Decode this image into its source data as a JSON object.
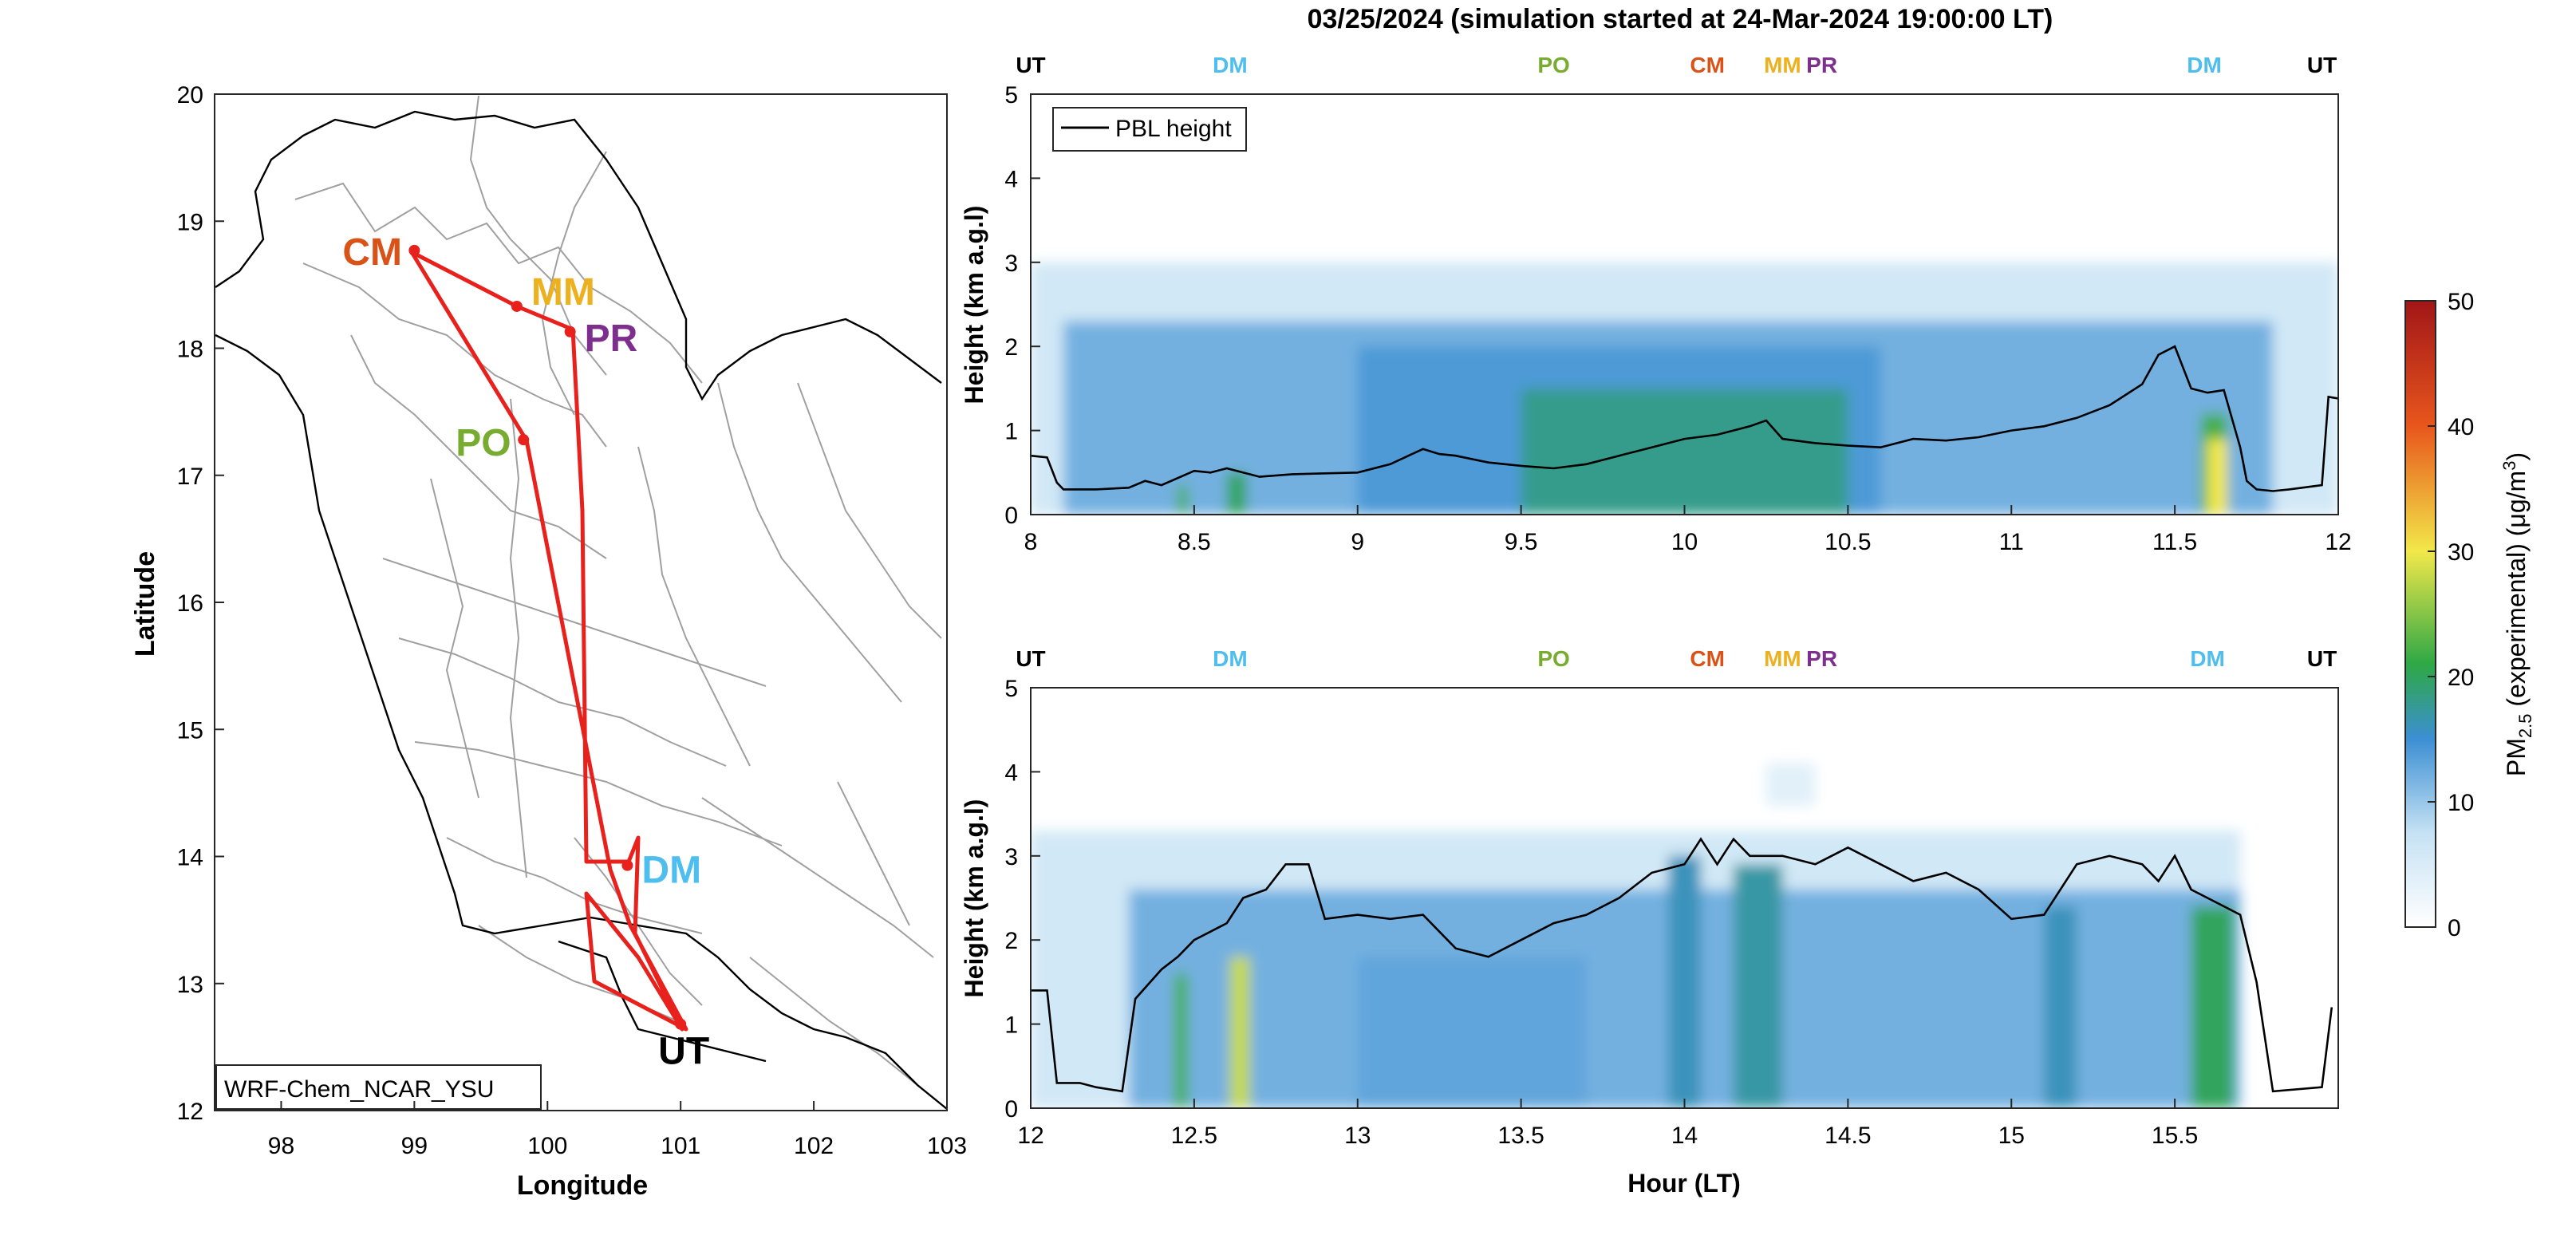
{
  "figure_title": "03/25/2024 (simulation started at 24-Mar-2024 19:00:00 LT)",
  "map": {
    "xlabel": "Longitude",
    "ylabel": "Latitude",
    "xticks": [
      "98",
      "99",
      "100",
      "101",
      "102",
      "103"
    ],
    "yticks": [
      "12",
      "13",
      "14",
      "15",
      "16",
      "17",
      "18",
      "19",
      "20"
    ],
    "model_label": "WRF-Chem_NCAR_YSU",
    "route_color": "#e8211c",
    "stations": [
      {
        "code": "CM",
        "lon": 99.0,
        "lat": 18.77,
        "color": "#d95319"
      },
      {
        "code": "MM",
        "lon": 99.77,
        "lat": 18.33,
        "color": "#edb120"
      },
      {
        "code": "PR",
        "lon": 100.17,
        "lat": 18.13,
        "color": "#7e2f8e"
      },
      {
        "code": "PO",
        "lon": 99.82,
        "lat": 17.28,
        "color": "#77ac30"
      },
      {
        "code": "DM",
        "lon": 100.6,
        "lat": 13.93,
        "color": "#4dbeee"
      },
      {
        "code": "UT",
        "lon": 101.0,
        "lat": 12.68,
        "color": "#000000"
      }
    ]
  },
  "chart_data": [
    {
      "type": "heatmap",
      "title": "",
      "xlabel": "",
      "ylabel": "Height (km a.g.l)",
      "xlim": [
        8,
        12
      ],
      "ylim": [
        0,
        5
      ],
      "xticks": [
        "8",
        "8.5",
        "9",
        "9.5",
        "10",
        "10.5",
        "11",
        "11.5",
        "12"
      ],
      "yticks": [
        "0",
        "1",
        "2",
        "3",
        "4",
        "5"
      ],
      "legend": {
        "position": "top-left",
        "entries": [
          "PBL height"
        ]
      },
      "station_markers": [
        {
          "code": "UT",
          "hour": 8.0,
          "color": "#000000"
        },
        {
          "code": "DM",
          "hour": 8.61,
          "color": "#4dbeee"
        },
        {
          "code": "PO",
          "hour": 9.6,
          "color": "#77ac30"
        },
        {
          "code": "CM",
          "hour": 10.07,
          "color": "#d95319"
        },
        {
          "code": "MM",
          "hour": 10.3,
          "color": "#edb120"
        },
        {
          "code": "PR",
          "hour": 10.42,
          "color": "#7e2f8e"
        },
        {
          "code": "DM",
          "hour": 11.59,
          "color": "#4dbeee"
        },
        {
          "code": "UT",
          "hour": 11.95,
          "color": "#000000"
        }
      ],
      "series": [
        {
          "name": "PBL height",
          "x": [
            8.0,
            8.05,
            8.08,
            8.1,
            8.2,
            8.3,
            8.35,
            8.4,
            8.5,
            8.55,
            8.6,
            8.7,
            8.8,
            9.0,
            9.1,
            9.2,
            9.25,
            9.3,
            9.4,
            9.5,
            9.6,
            9.7,
            9.8,
            9.9,
            10.0,
            10.1,
            10.2,
            10.25,
            10.3,
            10.4,
            10.5,
            10.6,
            10.7,
            10.8,
            10.9,
            11.0,
            11.1,
            11.2,
            11.3,
            11.4,
            11.45,
            11.5,
            11.55,
            11.6,
            11.65,
            11.7,
            11.72,
            11.75,
            11.8,
            11.85,
            11.95,
            11.97,
            12.0
          ],
          "y": [
            0.7,
            0.68,
            0.38,
            0.3,
            0.3,
            0.32,
            0.4,
            0.35,
            0.52,
            0.5,
            0.55,
            0.45,
            0.48,
            0.5,
            0.6,
            0.78,
            0.72,
            0.7,
            0.62,
            0.58,
            0.55,
            0.6,
            0.7,
            0.8,
            0.9,
            0.95,
            1.05,
            1.12,
            0.9,
            0.85,
            0.82,
            0.8,
            0.9,
            0.88,
            0.92,
            1.0,
            1.05,
            1.15,
            1.3,
            1.55,
            1.9,
            2.0,
            1.5,
            1.45,
            1.48,
            0.8,
            0.4,
            0.3,
            0.28,
            0.3,
            0.35,
            1.4,
            1.38
          ]
        },
        {
          "name": "PM2.5 bands",
          "bands": [
            {
              "x0": 8.0,
              "x1": 12.0,
              "y0": 0,
              "y1": 3.0,
              "value": 6
            },
            {
              "x0": 8.1,
              "x1": 11.8,
              "y0": 0,
              "y1": 2.3,
              "value": 12
            },
            {
              "x0": 9.0,
              "x1": 10.6,
              "y0": 0,
              "y1": 2.0,
              "value": 14
            },
            {
              "x0": 9.5,
              "x1": 10.5,
              "y0": 0,
              "y1": 1.5,
              "value": 18
            },
            {
              "x0": 8.45,
              "x1": 8.48,
              "y0": 0,
              "y1": 0.35,
              "value": 22
            },
            {
              "x0": 8.6,
              "x1": 8.66,
              "y0": 0,
              "y1": 0.5,
              "value": 20
            },
            {
              "x0": 11.58,
              "x1": 11.66,
              "y0": 0,
              "y1": 1.2,
              "value": 22
            },
            {
              "x0": 11.6,
              "x1": 11.66,
              "y0": 0,
              "y1": 0.9,
              "value": 30
            }
          ]
        }
      ]
    },
    {
      "type": "heatmap",
      "title": "",
      "xlabel": "Hour (LT)",
      "ylabel": "Height (km a.g.l)",
      "xlim": [
        12,
        16
      ],
      "ylim": [
        0,
        5
      ],
      "xticks": [
        "12",
        "12.5",
        "13",
        "13.5",
        "14",
        "14.5",
        "15",
        "15.5"
      ],
      "yticks": [
        "0",
        "1",
        "2",
        "3",
        "4",
        "5"
      ],
      "station_markers": [
        {
          "code": "UT",
          "hour": 12.0,
          "color": "#000000"
        },
        {
          "code": "DM",
          "hour": 12.61,
          "color": "#4dbeee"
        },
        {
          "code": "PO",
          "hour": 13.6,
          "color": "#77ac30"
        },
        {
          "code": "CM",
          "hour": 14.07,
          "color": "#d95319"
        },
        {
          "code": "MM",
          "hour": 14.3,
          "color": "#edb120"
        },
        {
          "code": "PR",
          "hour": 14.42,
          "color": "#7e2f8e"
        },
        {
          "code": "DM",
          "hour": 15.6,
          "color": "#4dbeee"
        },
        {
          "code": "UT",
          "hour": 15.95,
          "color": "#000000"
        }
      ],
      "series": [
        {
          "name": "PBL height",
          "x": [
            12.0,
            12.05,
            12.08,
            12.15,
            12.2,
            12.28,
            12.32,
            12.4,
            12.45,
            12.5,
            12.55,
            12.6,
            12.65,
            12.72,
            12.78,
            12.85,
            12.9,
            13.0,
            13.1,
            13.2,
            13.3,
            13.4,
            13.5,
            13.6,
            13.7,
            13.8,
            13.9,
            14.0,
            14.05,
            14.1,
            14.15,
            14.2,
            14.3,
            14.4,
            14.5,
            14.6,
            14.7,
            14.8,
            14.9,
            15.0,
            15.1,
            15.2,
            15.3,
            15.4,
            15.45,
            15.5,
            15.55,
            15.6,
            15.65,
            15.7,
            15.75,
            15.8,
            15.95,
            15.98
          ],
          "y": [
            1.4,
            1.4,
            0.3,
            0.3,
            0.25,
            0.2,
            1.3,
            1.65,
            1.8,
            2.0,
            2.1,
            2.2,
            2.5,
            2.6,
            2.9,
            2.9,
            2.25,
            2.3,
            2.25,
            2.3,
            1.9,
            1.8,
            2.0,
            2.2,
            2.3,
            2.5,
            2.8,
            2.9,
            3.2,
            2.9,
            3.2,
            3.0,
            3.0,
            2.9,
            3.1,
            2.9,
            2.7,
            2.8,
            2.6,
            2.25,
            2.3,
            2.9,
            3.0,
            2.9,
            2.7,
            3.0,
            2.6,
            2.5,
            2.4,
            2.3,
            1.5,
            0.2,
            0.25,
            1.2
          ]
        },
        {
          "name": "PM2.5 bands",
          "bands": [
            {
              "x0": 12.0,
              "x1": 15.7,
              "y0": 0,
              "y1": 3.3,
              "value": 6
            },
            {
              "x0": 12.3,
              "x1": 15.7,
              "y0": 0,
              "y1": 2.6,
              "value": 12
            },
            {
              "x0": 13.0,
              "x1": 13.7,
              "y0": 0,
              "y1": 1.8,
              "value": 13
            },
            {
              "x0": 13.95,
              "x1": 14.05,
              "y0": 0,
              "y1": 3.0,
              "value": 16
            },
            {
              "x0": 14.15,
              "x1": 14.3,
              "y0": 0,
              "y1": 2.9,
              "value": 17
            },
            {
              "x0": 15.1,
              "x1": 15.2,
              "y0": 0,
              "y1": 2.4,
              "value": 16
            },
            {
              "x0": 15.55,
              "x1": 15.68,
              "y0": 0,
              "y1": 2.4,
              "value": 20
            },
            {
              "x0": 12.44,
              "x1": 12.48,
              "y0": 0,
              "y1": 1.6,
              "value": 22
            },
            {
              "x0": 12.61,
              "x1": 12.67,
              "y0": 0,
              "y1": 1.8,
              "value": 28
            },
            {
              "x0": 14.25,
              "x1": 14.4,
              "y0": 3.6,
              "y1": 4.1,
              "value": 4
            }
          ]
        }
      ]
    },
    {
      "type": "colorbar",
      "label_main": "PM",
      "label_sub": "2.5",
      "label_rest": " (experimental) (μg/m",
      "label_sup": "3",
      "label_end": ")",
      "range": [
        0,
        50
      ],
      "ticks": [
        "0",
        "10",
        "20",
        "30",
        "40",
        "50"
      ],
      "colors": [
        "#ffffff",
        "#c6e2f4",
        "#3c8fd3",
        "#2ea845",
        "#f2e84a",
        "#e8561c",
        "#a11618"
      ]
    }
  ]
}
